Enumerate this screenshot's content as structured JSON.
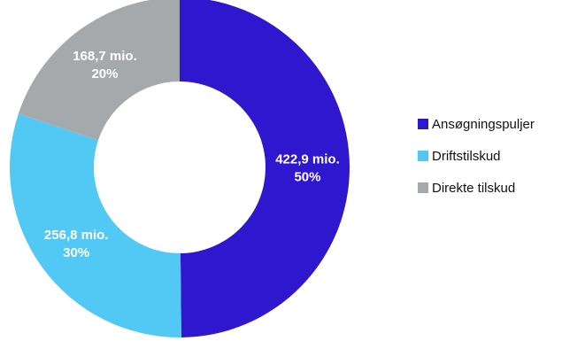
{
  "chart_data": {
    "type": "pie",
    "donut": true,
    "slices": [
      {
        "name": "Ansøgningspuljer",
        "value": 422.9,
        "value_label": "422,9 mio.",
        "percent_label": "50%",
        "color": "#2e17cf"
      },
      {
        "name": "Driftstilskud",
        "value": 256.8,
        "value_label": "256,8 mio.",
        "percent_label": "30%",
        "color": "#52c8f5"
      },
      {
        "name": "Direkte tilskud",
        "value": 168.7,
        "value_label": "168,7 mio.",
        "percent_label": "20%",
        "color": "#a6a9ab"
      }
    ],
    "legend_position": "right",
    "start_angle": "top",
    "direction": "clockwise"
  }
}
